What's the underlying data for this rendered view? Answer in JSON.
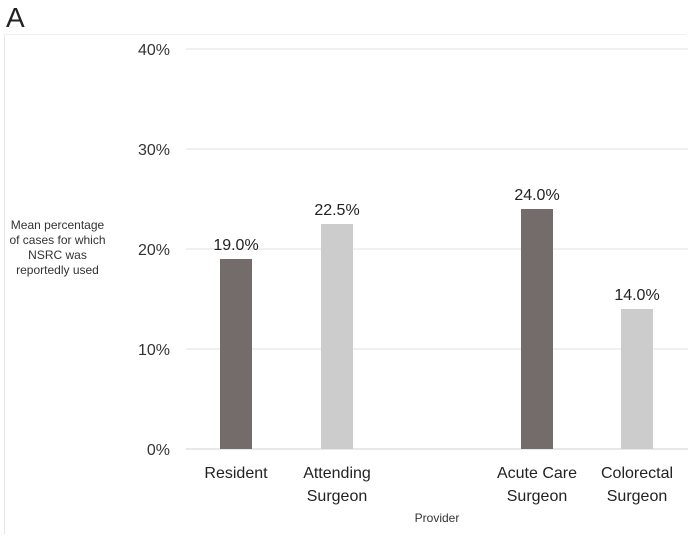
{
  "panel_label": "A",
  "chart_data": {
    "type": "bar",
    "title": "",
    "xlabel": "Provider",
    "ylabel": "Mean percentage of cases for which NSRC was reportedly used",
    "ylabel_lines": [
      "Mean percentage",
      "of cases for which",
      "NSRC was",
      "reportedly used"
    ],
    "ylim": [
      0,
      40
    ],
    "yticks": [
      "0%",
      "10%",
      "20%",
      "30%",
      "40%"
    ],
    "ytick_values": [
      0,
      10,
      20,
      30,
      40
    ],
    "grid": true,
    "legend": "none",
    "categories": [
      {
        "lines": [
          "Resident"
        ],
        "value": 19.0,
        "label": "19.0%",
        "color": "#736c6b"
      },
      {
        "lines": [
          "Attending",
          "Surgeon"
        ],
        "value": 22.5,
        "label": "22.5%",
        "color": "#cccccc"
      },
      {
        "lines": [
          "Acute Care",
          "Surgeon"
        ],
        "value": 24.0,
        "label": "24.0%",
        "color": "#736c6b"
      },
      {
        "lines": [
          "Colorectal",
          "Surgeon"
        ],
        "value": 14.0,
        "label": "14.0%",
        "color": "#cccccc"
      }
    ],
    "values": [
      19.0,
      22.5,
      24.0,
      14.0
    ]
  }
}
